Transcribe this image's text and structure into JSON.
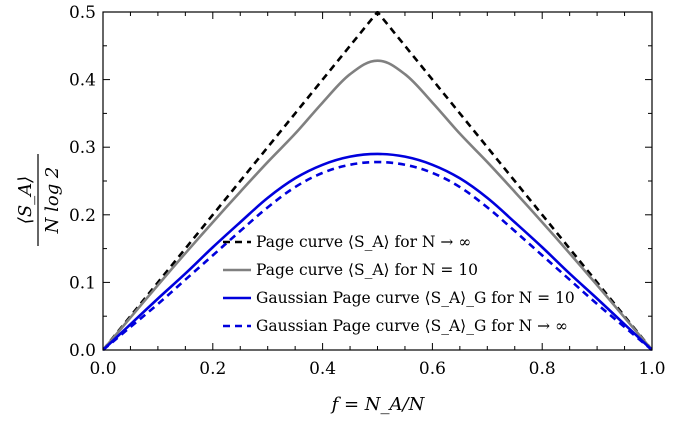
{
  "chart_data": {
    "type": "line",
    "title": "",
    "xlabel": "f = N_A/N",
    "ylabel_numerator": "⟨S_A⟩",
    "ylabel_denominator": "N log 2",
    "xlim": [
      0.0,
      1.0
    ],
    "ylim": [
      0.0,
      0.5
    ],
    "xticks": [
      "0.0",
      "0.2",
      "0.4",
      "0.6",
      "0.8",
      "1.0"
    ],
    "yticks": [
      "0.0",
      "0.1",
      "0.2",
      "0.3",
      "0.4",
      "0.5"
    ],
    "grid": false,
    "legend_position": "lower-center",
    "x": [
      0.0,
      0.05,
      0.1,
      0.15,
      0.2,
      0.25,
      0.3,
      0.35,
      0.4,
      0.45,
      0.5,
      0.55,
      0.6,
      0.65,
      0.7,
      0.75,
      0.8,
      0.85,
      0.9,
      0.95,
      1.0
    ],
    "series": [
      {
        "name": "Page curve ⟨S_A⟩ for N → ∞",
        "color": "#000000",
        "dash": "dashed",
        "values": [
          0.0,
          0.05,
          0.1,
          0.15,
          0.2,
          0.25,
          0.3,
          0.35,
          0.4,
          0.45,
          0.5,
          0.45,
          0.4,
          0.35,
          0.3,
          0.25,
          0.2,
          0.15,
          0.1,
          0.05,
          0.0
        ]
      },
      {
        "name": "Page curve ⟨S_A⟩ for N = 10",
        "color": "#808080",
        "dash": "solid",
        "values": [
          0.0,
          0.048,
          0.096,
          0.143,
          0.189,
          0.234,
          0.278,
          0.32,
          0.366,
          0.408,
          0.428,
          0.408,
          0.366,
          0.32,
          0.278,
          0.234,
          0.189,
          0.143,
          0.096,
          0.048,
          0.0
        ]
      },
      {
        "name": "Gaussian Page curve ⟨S_A⟩_G for N = 10",
        "color": "#0000dd",
        "dash": "solid",
        "values": [
          0.0,
          0.038,
          0.076,
          0.113,
          0.152,
          0.189,
          0.225,
          0.254,
          0.274,
          0.286,
          0.29,
          0.286,
          0.274,
          0.254,
          0.225,
          0.189,
          0.152,
          0.113,
          0.076,
          0.038,
          0.0
        ]
      },
      {
        "name": "Gaussian Page curve ⟨S_A⟩_G for N → ∞",
        "color": "#0000dd",
        "dash": "dashed",
        "values": [
          0.0,
          0.034,
          0.068,
          0.104,
          0.14,
          0.176,
          0.211,
          0.241,
          0.262,
          0.274,
          0.278,
          0.274,
          0.262,
          0.241,
          0.211,
          0.176,
          0.14,
          0.104,
          0.068,
          0.034,
          0.0
        ]
      }
    ]
  }
}
